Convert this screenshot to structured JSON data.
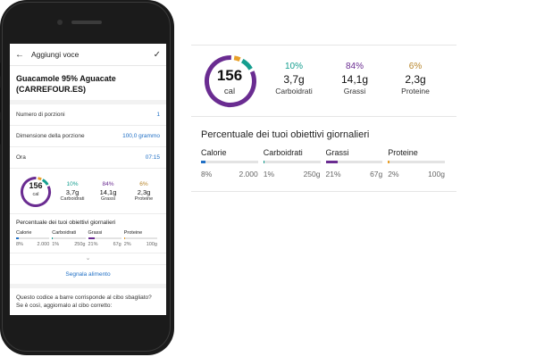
{
  "header": {
    "title": "Aggiungi voce"
  },
  "food": {
    "name": "Guacamole 95% Aguacate (CARREFOUR.ES)"
  },
  "fields": [
    {
      "label": "Numero di porzioni",
      "value": "1"
    },
    {
      "label": "Dimensione della porzione",
      "value": "100,0 grammo"
    },
    {
      "label": "Ora",
      "value": "07:15"
    }
  ],
  "calories": {
    "value": "156",
    "unit": "cal"
  },
  "macros": [
    {
      "pct": "10%",
      "grams": "3,7g",
      "name": "Carboidrati",
      "color": "#159e8f"
    },
    {
      "pct": "84%",
      "grams": "14,1g",
      "name": "Grassi",
      "color": "#6a2c91"
    },
    {
      "pct": "6%",
      "grams": "2,3g",
      "name": "Proteine",
      "color": "#b7852a"
    }
  ],
  "ring": {
    "fractions": [
      0.1,
      0.84,
      0.06
    ],
    "colors": [
      "#159e8f",
      "#6a2c91",
      "#e8a02a"
    ]
  },
  "goals": {
    "title": "Percentuale dei tuoi obiettivi giornalieri",
    "items": [
      {
        "name": "Calorie",
        "pct": "8%",
        "target": "2.000",
        "fill": 0.08,
        "color": "#1f6fc5"
      },
      {
        "name": "Carboidrati",
        "pct": "1%",
        "target": "250g",
        "fill": 0.01,
        "color": "#159e8f"
      },
      {
        "name": "Grassi",
        "pct": "21%",
        "target": "67g",
        "fill": 0.21,
        "color": "#6a2c91"
      },
      {
        "name": "Proteine",
        "pct": "2%",
        "target": "100g",
        "fill": 0.02,
        "color": "#e8a02a"
      }
    ]
  },
  "report": {
    "label": "Segnala alimento"
  },
  "question": {
    "text": "Questo codice a barre corrisponde al cibo sbagliato? Se è così, aggiornalo al cibo corretto:"
  },
  "icons": {
    "back": "arrow-left-icon",
    "confirm": "check-icon",
    "expand": "chevron-down-icon"
  }
}
